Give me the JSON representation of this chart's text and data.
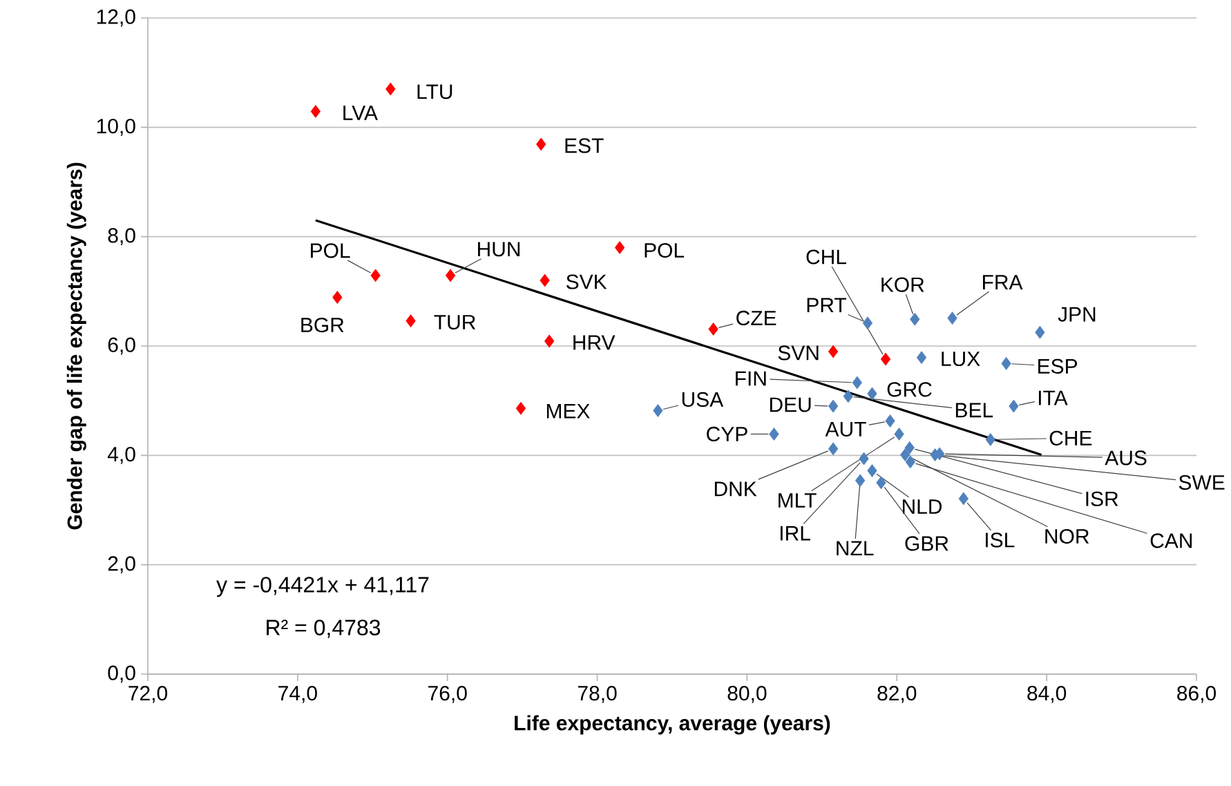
{
  "chart_data": {
    "type": "scatter",
    "xlabel": "Life expectancy, average (years)",
    "ylabel": "Gender gap of life expectancy (years)",
    "xlim": [
      72,
      86
    ],
    "ylim": [
      0,
      12
    ],
    "xticks": [
      {
        "value": 72,
        "label": "72,0"
      },
      {
        "value": 74,
        "label": "74,0"
      },
      {
        "value": 76,
        "label": "76,0"
      },
      {
        "value": 78,
        "label": "78,0"
      },
      {
        "value": 80,
        "label": "80,0"
      },
      {
        "value": 82,
        "label": "82,0"
      },
      {
        "value": 84,
        "label": "84,0"
      },
      {
        "value": 86,
        "label": "86,0"
      }
    ],
    "yticks": [
      {
        "value": 0,
        "label": "0,0"
      },
      {
        "value": 2,
        "label": "2,0"
      },
      {
        "value": 4,
        "label": "4,0"
      },
      {
        "value": 6,
        "label": "6,0"
      },
      {
        "value": 8,
        "label": "8,0"
      },
      {
        "value": 10,
        "label": "10,0"
      },
      {
        "value": 12,
        "label": "12,0"
      }
    ],
    "grid": "y",
    "marker": "diamond",
    "series": [
      {
        "color": "#ff0000",
        "x": [
          74.24,
          75.24,
          77.25,
          75.04,
          76.04,
          78.3,
          77.3,
          74.53,
          75.51,
          77.36,
          76.98,
          79.55,
          81.15,
          81.85
        ],
        "values": [
          10.29,
          10.7,
          9.69,
          7.29,
          7.29,
          7.8,
          7.2,
          6.89,
          6.46,
          6.09,
          4.86,
          6.31,
          5.9,
          5.76
        ]
      },
      {
        "color": "#4f81bd",
        "x": [
          78.81,
          81.61,
          82.24,
          82.74,
          83.91,
          82.33,
          83.46,
          81.47,
          81.67,
          81.15,
          81.35,
          83.56,
          80.36,
          81.91,
          83.25,
          82.03,
          81.15,
          82.57,
          82.51,
          82.17,
          82.11,
          82.18,
          81.56,
          81.51,
          81.67,
          81.79,
          82.89
        ],
        "values": [
          4.82,
          6.42,
          6.49,
          6.51,
          6.25,
          5.79,
          5.68,
          5.33,
          5.13,
          4.9,
          5.08,
          4.9,
          4.39,
          4.63,
          4.29,
          4.39,
          4.12,
          4.03,
          4.01,
          4.14,
          4.01,
          3.88,
          3.94,
          3.54,
          3.72,
          3.5,
          3.21
        ]
      },
      {
        "type": "line",
        "color": "#000000",
        "marker": "none",
        "x": [
          74.24,
          83.93
        ],
        "values": [
          8.3,
          4.01
        ]
      }
    ],
    "annotations": [
      {
        "text": "LVA",
        "x": 74.24,
        "y": 10.29
      },
      {
        "text": "LTU",
        "x": 75.24,
        "y": 10.7
      },
      {
        "text": "EST",
        "x": 77.25,
        "y": 9.69
      },
      {
        "text": "POL",
        "x": 75.04,
        "y": 7.29
      },
      {
        "text": "HUN",
        "x": 76.04,
        "y": 7.29
      },
      {
        "text": "POL",
        "x": 78.3,
        "y": 7.8
      },
      {
        "text": "SVK",
        "x": 77.3,
        "y": 7.2
      },
      {
        "text": "BGR",
        "x": 74.53,
        "y": 6.89
      },
      {
        "text": "TUR",
        "x": 75.51,
        "y": 6.46
      },
      {
        "text": "HRV",
        "x": 77.36,
        "y": 6.09
      },
      {
        "text": "MEX",
        "x": 76.98,
        "y": 4.86
      },
      {
        "text": "CZE",
        "x": 79.55,
        "y": 6.31
      },
      {
        "text": "SVN",
        "x": 81.15,
        "y": 5.9
      },
      {
        "text": "CHL",
        "x": 81.85,
        "y": 5.76
      },
      {
        "text": "USA",
        "x": 78.81,
        "y": 4.82
      },
      {
        "text": "PRT",
        "x": 81.61,
        "y": 6.42
      },
      {
        "text": "KOR",
        "x": 82.24,
        "y": 6.49
      },
      {
        "text": "FRA",
        "x": 82.74,
        "y": 6.51
      },
      {
        "text": "JPN",
        "x": 83.91,
        "y": 6.25
      },
      {
        "text": "LUX",
        "x": 82.33,
        "y": 5.79
      },
      {
        "text": "ESP",
        "x": 83.46,
        "y": 5.68
      },
      {
        "text": "FIN",
        "x": 81.47,
        "y": 5.33
      },
      {
        "text": "GRC",
        "x": 81.67,
        "y": 5.13
      },
      {
        "text": "DEU",
        "x": 81.15,
        "y": 4.9
      },
      {
        "text": "BEL",
        "x": 81.35,
        "y": 5.08
      },
      {
        "text": "ITA",
        "x": 83.56,
        "y": 4.9
      },
      {
        "text": "CYP",
        "x": 80.36,
        "y": 4.39
      },
      {
        "text": "AUT",
        "x": 81.91,
        "y": 4.63
      },
      {
        "text": "CHE",
        "x": 83.25,
        "y": 4.29
      },
      {
        "text": "MLT",
        "x": 82.03,
        "y": 4.39
      },
      {
        "text": "DNK",
        "x": 81.15,
        "y": 4.12
      },
      {
        "text": "AUS",
        "x": 82.57,
        "y": 4.03
      },
      {
        "text": "SWE",
        "x": 82.51,
        "y": 4.01
      },
      {
        "text": "ISR",
        "x": 82.17,
        "y": 4.14
      },
      {
        "text": "NOR",
        "x": 82.11,
        "y": 4.01
      },
      {
        "text": "CAN",
        "x": 82.18,
        "y": 3.88
      },
      {
        "text": "IRL",
        "x": 81.56,
        "y": 3.94
      },
      {
        "text": "NZL",
        "x": 81.51,
        "y": 3.54
      },
      {
        "text": "NLD",
        "x": 81.67,
        "y": 3.72
      },
      {
        "text": "GBR",
        "x": 81.79,
        "y": 3.5
      },
      {
        "text": "ISL",
        "x": 82.89,
        "y": 3.21
      },
      "y = -0,4421x + 41,117",
      "R² = 0,4783"
    ]
  }
}
